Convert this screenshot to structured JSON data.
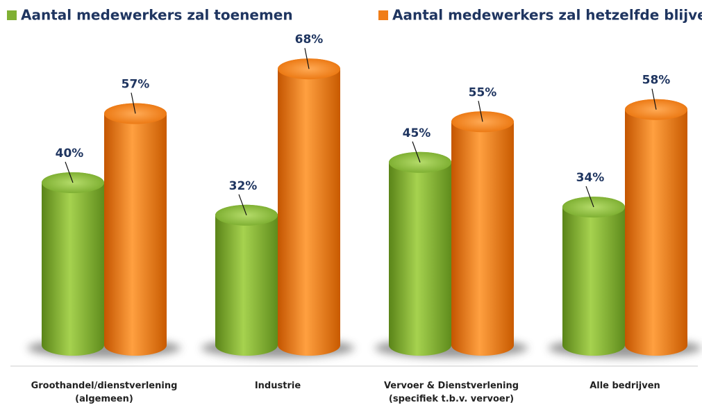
{
  "chart_data": {
    "type": "bar",
    "categories": [
      "Groothandel/dienstverlening\n(algemeen)",
      "Industrie",
      "Vervoer & Dienstverlening\n(specifiek t.b.v. vervoer)",
      "Alle bedrijven"
    ],
    "series": [
      {
        "name": "Aantal medewerkers zal toenemen",
        "color": "#7fb033",
        "values": [
          40,
          32,
          45,
          34
        ],
        "value_labels": [
          "40%",
          "32%",
          "45%",
          "34%"
        ]
      },
      {
        "name": "Aantal medewerkers zal hetzelfde blijven",
        "color": "#f07d18",
        "values": [
          57,
          68,
          55,
          58
        ],
        "value_labels": [
          "57%",
          "68%",
          "55%",
          "58%"
        ]
      }
    ],
    "legend": "top"
  }
}
